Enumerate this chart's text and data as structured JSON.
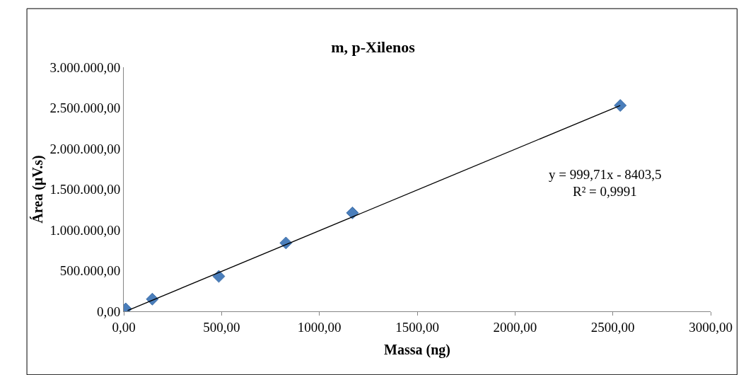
{
  "chart_data": {
    "type": "scatter",
    "title": "m, p-Xilenos",
    "xlabel": "Massa (ng)",
    "ylabel": "Área (µV.s)",
    "xlim": [
      0,
      3000
    ],
    "ylim": [
      0,
      3000000
    ],
    "xticks": [
      {
        "value": 0,
        "label": "0,00"
      },
      {
        "value": 500,
        "label": "500,00"
      },
      {
        "value": 1000,
        "label": "1000,00"
      },
      {
        "value": 1500,
        "label": "1500,00"
      },
      {
        "value": 2000,
        "label": "2000,00"
      },
      {
        "value": 2500,
        "label": "2500,00"
      },
      {
        "value": 3000,
        "label": "3000,00"
      }
    ],
    "yticks": [
      {
        "value": 0,
        "label": "0,00"
      },
      {
        "value": 500000,
        "label": "500.000,00"
      },
      {
        "value": 1000000,
        "label": "1.000.000,00"
      },
      {
        "value": 1500000,
        "label": "1.500.000,00"
      },
      {
        "value": 2000000,
        "label": "2.000.000,00"
      },
      {
        "value": 2500000,
        "label": "2.500.000,00"
      },
      {
        "value": 3000000,
        "label": "3.000.000,00"
      }
    ],
    "marker": "diamond",
    "series": [
      {
        "color": "#4a7ebb",
        "x": [
          10,
          146,
          486,
          829,
          1169,
          2538
        ],
        "values": [
          30000,
          150000,
          430000,
          840000,
          1210000,
          2530000
        ]
      },
      {
        "type": "line",
        "marker": "none",
        "color": "#000000",
        "x": [
          20,
          2538
        ],
        "values": [
          10000,
          2530000
        ]
      }
    ],
    "annotations": [
      "y = 999,71x - 8403,5",
      "R² = 0,9991"
    ]
  }
}
